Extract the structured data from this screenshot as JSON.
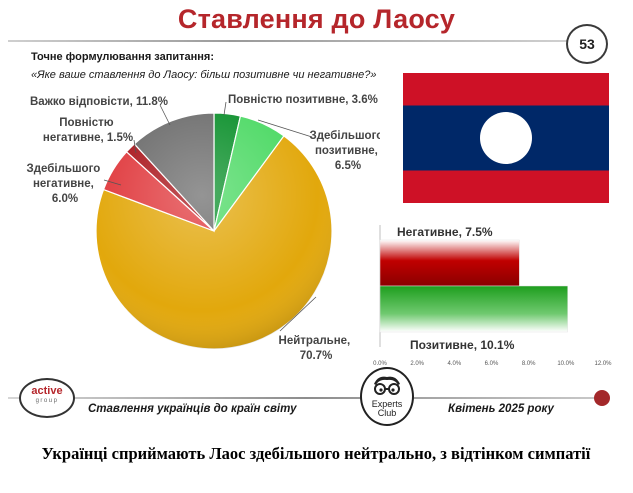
{
  "header": {
    "title": "Ставлення до Лаосу",
    "page_number": "53"
  },
  "question": {
    "label": "Точне формулювання запитання:",
    "text": "«Яке ваше ставлення до Лаосу: більш позитивне чи негативне?»"
  },
  "flag": {
    "country": "Laos",
    "colors": {
      "red": "#ce1126",
      "blue": "#002868",
      "white": "#ffffff"
    }
  },
  "chart_data": [
    {
      "type": "pie",
      "slices": [
        {
          "label": "Повністю позитивне",
          "value": 3.6,
          "display": "Повністю позитивне, 3.6%",
          "color": "#0a8f2a"
        },
        {
          "label": "Здебільшого позитивне",
          "value": 6.5,
          "display_lines": [
            "Здебільшого",
            "позитивне,",
            "6.5%"
          ],
          "color": "#4cd964"
        },
        {
          "label": "Нейтральне",
          "value": 70.7,
          "display_lines": [
            "Нейтральне,",
            "70.7%"
          ],
          "color": "#e2a80c"
        },
        {
          "label": "Здебільшого негативне",
          "value": 6.0,
          "display_lines": [
            "Здебільшого",
            "негативне,",
            "6.0%"
          ],
          "color": "#e03a3e"
        },
        {
          "label": "Повністю негативне",
          "value": 1.5,
          "display_lines": [
            "Повністю",
            "негативне, 1.5%"
          ],
          "color": "#a9151b"
        },
        {
          "label": "Важко відповісти",
          "value": 11.8,
          "display": "Важко відповісти, 11.8%",
          "color": "#6b6b6b"
        }
      ],
      "start_angle": 0,
      "direction": "clockwise"
    },
    {
      "type": "bar",
      "orientation": "horizontal",
      "series": [
        {
          "name": "Негативне",
          "value": 7.5,
          "display": "Негативне, 7.5%",
          "color": "#c00000"
        },
        {
          "name": "Позитивне",
          "value": 10.1,
          "display": "Позитивне, 10.1%",
          "color": "#1e9e1e"
        }
      ],
      "xlim": [
        0,
        12
      ],
      "xticks": [
        "0.0%",
        "2.0%",
        "4.0%",
        "6.0%",
        "8.0%",
        "10.0%",
        "12.0%"
      ],
      "grid": false
    }
  ],
  "footer": {
    "logo_left_line1": "active",
    "logo_left_line2": "group",
    "logo_center_line1": "Experts",
    "logo_center_line2": "Club",
    "left_text": "Ставлення українців до країн світу",
    "right_text": "Квітень 2025 року"
  },
  "caption": "Українці сприймають Лаос здебільшого нейтрально, з відтінком симпатії"
}
